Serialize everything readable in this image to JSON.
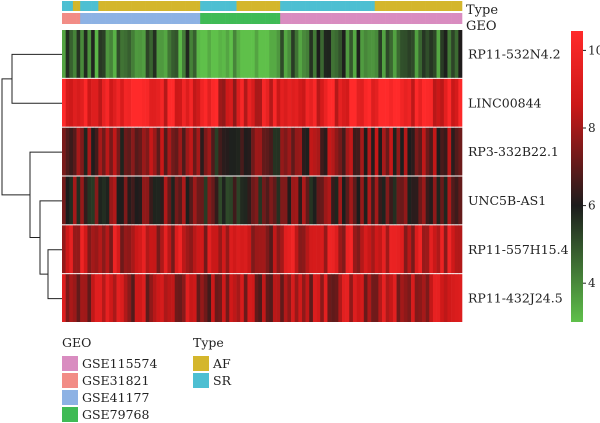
{
  "chart_data": {
    "type": "heatmap",
    "title": "",
    "rows": [
      "RP11-532N4.2",
      "LINC00844",
      "RP3-332B22.1",
      "UNC5B-AS1",
      "RP11-557H15.4",
      "RP11-432J24.5"
    ],
    "row_mean_values": [
      4.5,
      9.5,
      7.2,
      6.8,
      8.6,
      8.2
    ],
    "color_scale": {
      "min": 3,
      "max": 10.5,
      "ticks": [
        4,
        6,
        8,
        10
      ],
      "colors": [
        "#5fc04a",
        "#1c1c1c",
        "#cc1818",
        "#ff2a2a"
      ]
    },
    "annotation_tracks": [
      {
        "name": "Type",
        "categories": [
          {
            "label": "AF",
            "color": "#d4b62c"
          },
          {
            "label": "SR",
            "color": "#4dbfd2"
          }
        ]
      },
      {
        "name": "GEO",
        "categories": [
          {
            "label": "GSE115574",
            "color": "#d98cc0"
          },
          {
            "label": "GSE31821",
            "color": "#f28c86"
          },
          {
            "label": "GSE41177",
            "color": "#8db2e4"
          },
          {
            "label": "GSE79768",
            "color": "#3fbb55"
          }
        ]
      }
    ],
    "legend_position": "bottom-left",
    "colorbar_position": "right"
  }
}
